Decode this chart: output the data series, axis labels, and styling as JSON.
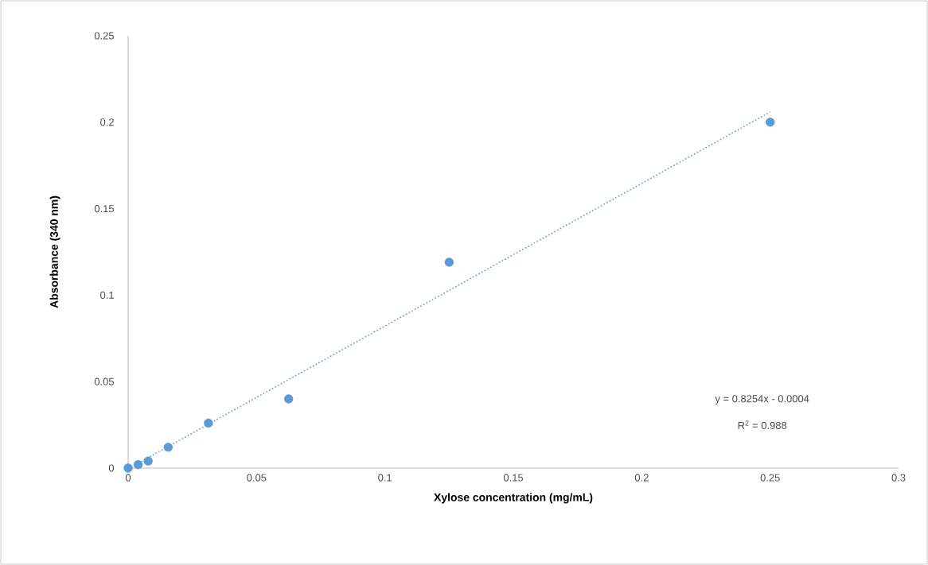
{
  "chart_data": {
    "type": "scatter",
    "xlabel": "Xylose concentration (mg/mL)",
    "ylabel": "Absorbance  (340 nm)",
    "series": [
      {
        "color": "#5b9bd5",
        "marker": "circle",
        "x": [
          0,
          0.0039,
          0.0078,
          0.0156,
          0.03125,
          0.0625,
          0.125,
          0.25
        ],
        "values": [
          0,
          0.002,
          0.004,
          0.012,
          0.026,
          0.04,
          0.119,
          0.2
        ]
      },
      {
        "type": "line",
        "color": "#5b9bd5",
        "line_style": "dotted",
        "marker": "none",
        "x": [
          0.0039,
          0.25
        ],
        "values": [
          0.0028,
          0.2059
        ]
      }
    ],
    "xlim": [
      0,
      0.3
    ],
    "ylim": [
      0,
      0.25
    ],
    "xticks": [
      0,
      0.05,
      0.1,
      0.15,
      0.2,
      0.25,
      0.3
    ],
    "yticks": [
      0,
      0.05,
      0.1,
      0.15,
      0.2,
      0.25
    ],
    "annotations": [
      "y = 0.8254x - 0.0004",
      "R$^{2}$ = 0.988"
    ],
    "grid": false
  }
}
